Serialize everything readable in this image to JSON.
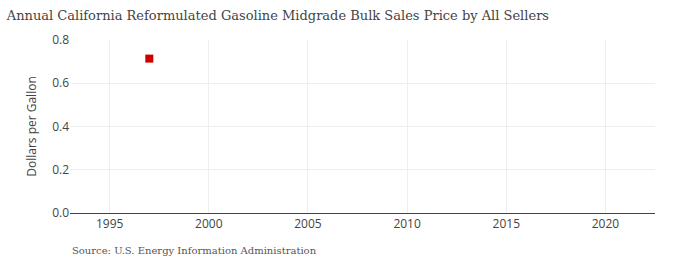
{
  "chart_data": {
    "type": "scatter",
    "title": "Annual California Reformulated Gasoline Midgrade Bulk Sales Price by All Sellers",
    "ylabel": "Dollars per Gallon",
    "annotations": [
      "Source: U.S. Energy Information Administration"
    ],
    "x": [
      1997
    ],
    "values": [
      0.714
    ],
    "color": "#cc0000",
    "marker": "square",
    "xlim": [
      1993,
      2022.5
    ],
    "ylim": [
      0.0,
      0.8
    ],
    "xticks": [
      1995,
      2000,
      2005,
      2010,
      2015,
      2020
    ],
    "yticks": [
      {
        "value": 0.0,
        "label": "0.0"
      },
      0.2,
      0.4,
      0.6,
      0.8
    ],
    "grid": true
  }
}
